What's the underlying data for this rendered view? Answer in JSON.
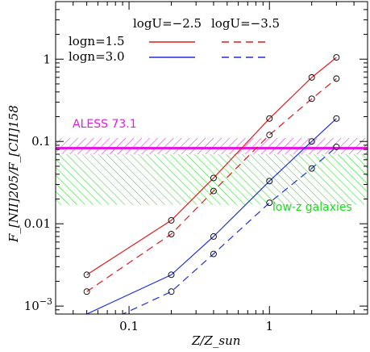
{
  "chart_data": {
    "type": "line",
    "xscale": "log",
    "yscale": "log",
    "xlim": [
      0.03,
      5
    ],
    "ylim": [
      0.0008,
      5
    ],
    "xlabel": "Z/Z_sun",
    "ylabel": "F_[NII]205/F_[CII]158",
    "x_tick_labels": [
      "0.1",
      "1"
    ],
    "y_tick_labels": [
      "10^-3",
      "0.01",
      "0.1",
      "1"
    ],
    "legend": {
      "headers": [
        "logU=−2.5",
        "logU=−3.5"
      ],
      "rows": [
        "logn=1.5",
        "logn=3.0"
      ],
      "placement": "top"
    },
    "series": [
      {
        "name": "logn=1.5, logU=−2.5",
        "color": "#e01b1b",
        "dash": "solid",
        "x": [
          0.05,
          0.2,
          0.4,
          1.0,
          2.0,
          3.0
        ],
        "y": [
          0.0024,
          0.011,
          0.036,
          0.19,
          0.6,
          1.05
        ]
      },
      {
        "name": "logn=1.5, logU=−3.5",
        "color": "#e01b1b",
        "dash": "dashed",
        "x": [
          0.05,
          0.2,
          0.4,
          1.0,
          2.0,
          3.0
        ],
        "y": [
          0.0015,
          0.0075,
          0.025,
          0.12,
          0.33,
          0.58
        ]
      },
      {
        "name": "logn=3.0, logU=−2.5",
        "color": "#1e2fe0",
        "dash": "solid",
        "x": [
          0.05,
          0.2,
          0.4,
          1.0,
          2.0,
          3.0
        ],
        "y": [
          0.0008,
          0.0024,
          0.007,
          0.033,
          0.1,
          0.19
        ]
      },
      {
        "name": "logn=3.0, logU=−3.5",
        "color": "#1e2fe0",
        "dash": "dashed",
        "x": [
          0.05,
          0.2,
          0.4,
          1.0,
          2.0,
          3.0
        ],
        "y": [
          0.0005,
          0.0015,
          0.0043,
          0.018,
          0.047,
          0.086
        ]
      }
    ],
    "markers": [
      {
        "series": 0,
        "x": [
          0.05,
          0.2,
          0.4,
          1.0,
          2.0,
          3.0
        ]
      },
      {
        "series": 1,
        "x": [
          0.05,
          0.2,
          0.4,
          1.0,
          2.0,
          3.0
        ]
      },
      {
        "series": 2,
        "x": [
          0.2,
          0.4,
          1.0,
          2.0,
          3.0
        ]
      },
      {
        "series": 3,
        "x": [
          0.2,
          0.4,
          1.0,
          2.0,
          3.0
        ]
      }
    ],
    "bands": [
      {
        "label": "ALESS 73.1",
        "color": "#e21ae2",
        "y_low": 0.07,
        "y_high": 0.11,
        "y_line": 0.083
      },
      {
        "label": "low-z galaxies",
        "color": "#1ed81e",
        "y_low": 0.017,
        "y_high": 0.07
      }
    ],
    "grid": false
  }
}
